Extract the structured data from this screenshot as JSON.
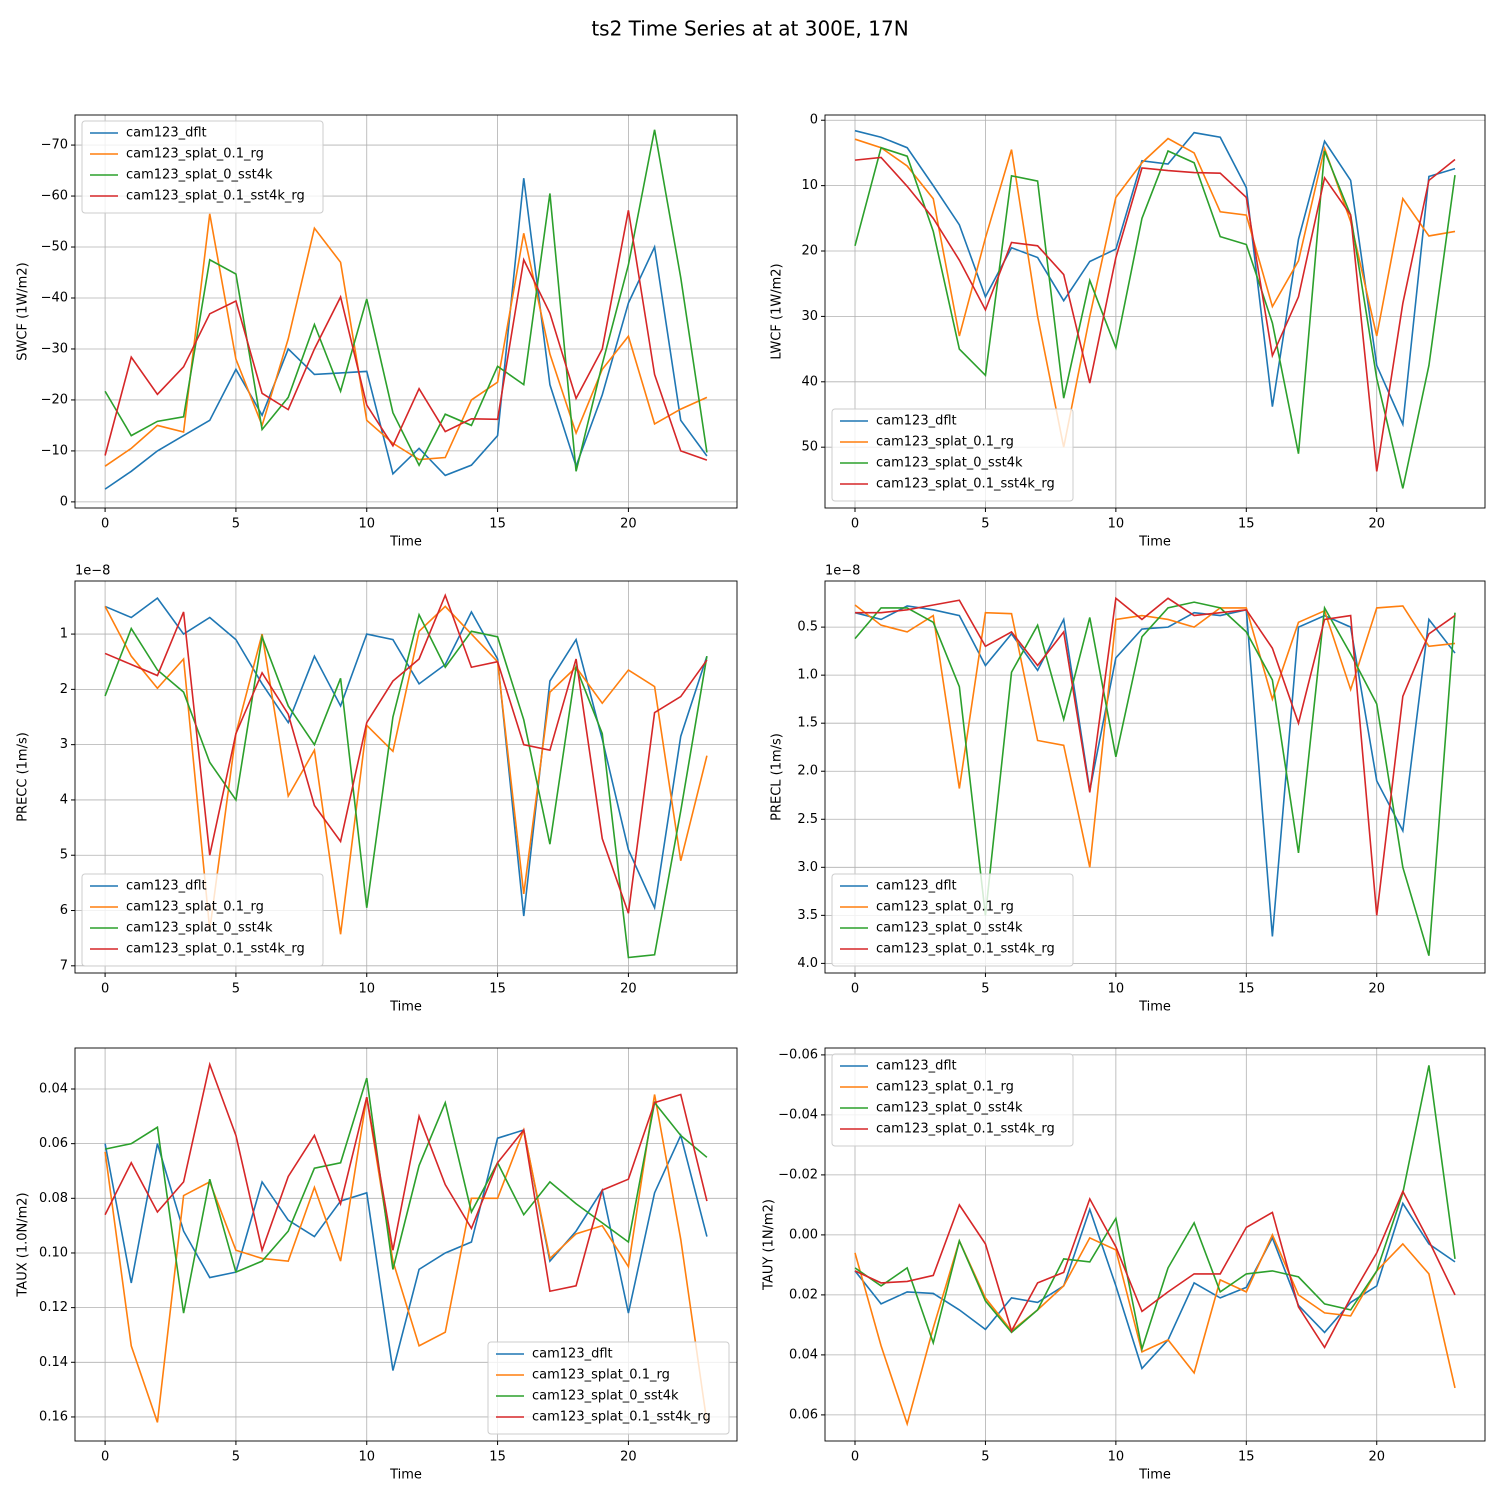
{
  "title": "ts2 Time Series at at 300E, 17N",
  "chart_data": [
    {
      "type": "line",
      "ylabel": "SWCF (1W/m2)",
      "xlabel": "Time",
      "legend": "upper left",
      "grid": true,
      "x": [
        0,
        1,
        2,
        3,
        4,
        5,
        6,
        7,
        8,
        9,
        10,
        11,
        12,
        13,
        14,
        15,
        16,
        17,
        18,
        19,
        20,
        21,
        22,
        23
      ],
      "xlim": [
        -1.15,
        24.15
      ],
      "xticks": [
        0,
        5,
        10,
        15,
        20
      ],
      "ylim": [
        1.2,
        -75.9
      ],
      "yticks": [
        0,
        {
          "value": -10,
          "label": "−10"
        },
        {
          "value": -20,
          "label": "−20"
        },
        {
          "value": -30,
          "label": "−30"
        },
        {
          "value": -40,
          "label": "−40"
        },
        {
          "value": -50,
          "label": "−50"
        },
        {
          "value": -60,
          "label": "−60"
        },
        {
          "value": -70,
          "label": "−70"
        }
      ],
      "series": [
        {
          "name": "cam123_dflt",
          "color": "#1f77b4",
          "values": [
            -2.5,
            -6,
            -10,
            -13,
            -16,
            -26,
            -17,
            -30,
            -25,
            -25.3,
            -25.6,
            -5.5,
            -10.5,
            -5.2,
            -7.2,
            -13,
            -63.5,
            -23,
            -7,
            -21,
            -39,
            -50,
            -16,
            -9
          ]
        },
        {
          "name": "cam123_splat_0.1_rg",
          "color": "#ff7f0e",
          "values": [
            -7,
            -10.5,
            -15,
            -13.7,
            -56.5,
            -28,
            -15,
            -32,
            -53.7,
            -47,
            -16,
            -11.5,
            -8.3,
            -8.7,
            -20,
            -23.5,
            -52.7,
            -29,
            -13.5,
            -26,
            -32.5,
            -15.3,
            -18.2,
            -20.5
          ]
        },
        {
          "name": "cam123_splat_0_sst4k",
          "color": "#2ca02c",
          "values": [
            -21.7,
            -13,
            -15.8,
            -16.7,
            -47.5,
            -44.7,
            -14.2,
            -20.5,
            -34.8,
            -21.7,
            -39.8,
            -17.5,
            -7.2,
            -17.2,
            -15,
            -26.6,
            -23,
            -60.5,
            -6,
            -27,
            -46.5,
            -73,
            -44,
            -9.7
          ]
        },
        {
          "name": "cam123_splat_0.1_sst4k_rg",
          "color": "#d62728",
          "values": [
            -9.1,
            -28.4,
            -21.1,
            -26.5,
            -36.9,
            -39.4,
            -21.3,
            -18.1,
            -30,
            -40.2,
            -19,
            -11,
            -22.2,
            -13.8,
            -16.3,
            -16.2,
            -47.5,
            -37,
            -20.3,
            -30,
            -57.2,
            -25,
            -10,
            -8.2
          ]
        }
      ]
    },
    {
      "type": "line",
      "ylabel": "LWCF (1W/m2)",
      "xlabel": "Time",
      "legend": "lower left",
      "grid": true,
      "x": [
        0,
        1,
        2,
        3,
        4,
        5,
        6,
        7,
        8,
        9,
        10,
        11,
        12,
        13,
        14,
        15,
        16,
        17,
        18,
        19,
        20,
        21,
        22,
        23
      ],
      "xlim": [
        -1.15,
        24.15
      ],
      "xticks": [
        0,
        5,
        10,
        15,
        20
      ],
      "ylim": [
        59.3,
        -0.8
      ],
      "yticks": [
        0,
        10,
        20,
        30,
        40,
        50
      ],
      "series": [
        {
          "name": "cam123_dflt",
          "color": "#1f77b4",
          "values": [
            1.6,
            2.6,
            4.2,
            10,
            16,
            27,
            19.5,
            21,
            27.6,
            21.6,
            19.7,
            6.2,
            6.7,
            1.9,
            2.6,
            10.3,
            43.8,
            18.2,
            3.2,
            9.2,
            37.5,
            46.5,
            8.6,
            7.4
          ]
        },
        {
          "name": "cam123_splat_0.1_rg",
          "color": "#ff7f0e",
          "values": [
            2.9,
            4.2,
            7,
            12,
            33,
            18,
            4.5,
            30,
            50,
            30,
            11.8,
            6.5,
            2.8,
            5,
            14,
            14.5,
            28.5,
            21.5,
            4.3,
            15.5,
            33,
            12,
            17.7,
            17
          ]
        },
        {
          "name": "cam123_splat_0_sst4k",
          "color": "#2ca02c",
          "values": [
            19.2,
            4.2,
            5.5,
            17,
            35,
            39,
            8.5,
            9.3,
            42.5,
            24.5,
            34.8,
            15,
            4.7,
            6.5,
            17.8,
            19,
            31,
            51,
            4.7,
            14.5,
            39.5,
            56.3,
            37.5,
            8.4
          ]
        },
        {
          "name": "cam123_splat_0.1_sst4k_rg",
          "color": "#d62728",
          "values": [
            6.1,
            5.7,
            10.1,
            15,
            21.4,
            29,
            18.7,
            19.2,
            23.6,
            40.2,
            21,
            7.3,
            7.7,
            8,
            8.1,
            11.8,
            36,
            27,
            8.8,
            14.5,
            53.7,
            28,
            9.2,
            6
          ]
        }
      ]
    },
    {
      "type": "line",
      "ylabel": "PRECC (1m/s)",
      "xlabel": "Time",
      "legend": "lower left",
      "grid": true,
      "offset_text": "1e−8",
      "x": [
        0,
        1,
        2,
        3,
        4,
        5,
        6,
        7,
        8,
        9,
        10,
        11,
        12,
        13,
        14,
        15,
        16,
        17,
        18,
        19,
        20,
        21,
        22,
        23
      ],
      "xlim": [
        -1.15,
        24.15
      ],
      "xticks": [
        0,
        5,
        10,
        15,
        20
      ],
      "ylim": [
        7.13,
        0.04
      ],
      "yticks": [
        1,
        2,
        3,
        4,
        5,
        6,
        7
      ],
      "series": [
        {
          "name": "cam123_dflt",
          "color": "#1f77b4",
          "values": [
            0.5,
            0.7,
            0.35,
            1,
            0.7,
            1.1,
            1.9,
            2.6,
            1.4,
            2.3,
            1.0,
            1.1,
            1.9,
            1.55,
            0.6,
            1.45,
            6.1,
            1.85,
            1.1,
            2.9,
            4.9,
            5.95,
            2.85,
            1.4
          ]
        },
        {
          "name": "cam123_splat_0.1_rg",
          "color": "#ff7f0e",
          "values": [
            0.5,
            1.4,
            1.98,
            1.45,
            6.35,
            2.8,
            1.0,
            3.93,
            3.1,
            6.43,
            2.65,
            3.12,
            0.95,
            0.5,
            1.0,
            1.5,
            5.7,
            2.05,
            1.6,
            2.25,
            1.65,
            1.95,
            5.1,
            3.2
          ]
        },
        {
          "name": "cam123_splat_0_sst4k",
          "color": "#2ca02c",
          "values": [
            2.12,
            0.9,
            1.65,
            2.05,
            3.32,
            4.0,
            1.05,
            2.3,
            3.0,
            1.8,
            5.95,
            2.5,
            0.65,
            1.6,
            0.95,
            1.05,
            2.55,
            4.8,
            1.6,
            2.8,
            6.85,
            6.8,
            4.2,
            1.4
          ]
        },
        {
          "name": "cam123_splat_0.1_sst4k_rg",
          "color": "#d62728",
          "values": [
            1.35,
            1.55,
            1.75,
            0.6,
            5.0,
            2.8,
            1.7,
            2.45,
            4.1,
            4.75,
            2.6,
            1.85,
            1.45,
            0.3,
            1.6,
            1.5,
            3.0,
            3.1,
            1.45,
            4.7,
            6.05,
            2.42,
            2.13,
            1.47
          ]
        }
      ]
    },
    {
      "type": "line",
      "ylabel": "PRECL (1m/s)",
      "xlabel": "Time",
      "legend": "lower left",
      "grid": true,
      "offset_text": "1e−8",
      "x": [
        0,
        1,
        2,
        3,
        4,
        5,
        6,
        7,
        8,
        9,
        10,
        11,
        12,
        13,
        14,
        15,
        16,
        17,
        18,
        19,
        20,
        21,
        22,
        23
      ],
      "xlim": [
        -1.15,
        24.15
      ],
      "xticks": [
        0,
        5,
        10,
        15,
        20
      ],
      "ylim": [
        4.1,
        0.02
      ],
      "yticks": [
        0.5,
        {
          "value": 1,
          "label": "1.0"
        },
        1.5,
        {
          "value": 2,
          "label": "2.0"
        },
        2.5,
        {
          "value": 3,
          "label": "3.0"
        },
        3.5,
        {
          "value": 4,
          "label": "4.0"
        }
      ],
      "series": [
        {
          "name": "cam123_dflt",
          "color": "#1f77b4",
          "values": [
            0.35,
            0.42,
            0.28,
            0.32,
            0.38,
            0.9,
            0.57,
            0.95,
            0.42,
            2.2,
            0.82,
            0.52,
            0.5,
            0.35,
            0.38,
            0.32,
            3.72,
            0.5,
            0.38,
            0.5,
            2.1,
            2.62,
            0.42,
            0.77
          ]
        },
        {
          "name": "cam123_splat_0.1_rg",
          "color": "#ff7f0e",
          "values": [
            0.27,
            0.48,
            0.55,
            0.38,
            2.18,
            0.35,
            0.36,
            1.68,
            1.73,
            3.0,
            0.42,
            0.38,
            0.42,
            0.5,
            0.3,
            0.3,
            1.25,
            0.45,
            0.33,
            1.15,
            0.3,
            0.28,
            0.7,
            0.67
          ]
        },
        {
          "name": "cam123_splat_0_sst4k",
          "color": "#2ca02c",
          "values": [
            0.62,
            0.3,
            0.3,
            0.45,
            1.12,
            3.5,
            0.97,
            0.48,
            1.46,
            0.4,
            1.85,
            0.6,
            0.3,
            0.24,
            0.3,
            0.55,
            1.05,
            2.85,
            0.3,
            0.78,
            1.3,
            3.0,
            3.92,
            0.35
          ]
        },
        {
          "name": "cam123_splat_0.1_sst4k_rg",
          "color": "#d62728",
          "values": [
            0.35,
            0.35,
            0.32,
            0.27,
            0.22,
            0.7,
            0.55,
            0.9,
            0.55,
            2.22,
            0.2,
            0.42,
            0.2,
            0.38,
            0.35,
            0.32,
            0.72,
            1.5,
            0.42,
            0.38,
            3.5,
            1.22,
            0.57,
            0.38
          ]
        }
      ]
    },
    {
      "type": "line",
      "ylabel": "TAUX (1.0N/m2)",
      "xlabel": "Time",
      "legend": "lower right",
      "grid": true,
      "x": [
        0,
        1,
        2,
        3,
        4,
        5,
        6,
        7,
        8,
        9,
        10,
        11,
        12,
        13,
        14,
        15,
        16,
        17,
        18,
        19,
        20,
        21,
        22,
        23
      ],
      "xlim": [
        -1.15,
        24.15
      ],
      "xticks": [
        0,
        5,
        10,
        15,
        20
      ],
      "ylim": [
        0.1688,
        0.025
      ],
      "yticks": [
        0.04,
        0.06,
        0.08,
        {
          "value": 0.1,
          "label": "0.10"
        },
        0.12,
        0.14,
        0.16
      ],
      "series": [
        {
          "name": "cam123_dflt",
          "color": "#1f77b4",
          "values": [
            0.06,
            0.111,
            0.06,
            0.092,
            0.109,
            0.107,
            0.074,
            0.088,
            0.094,
            0.081,
            0.078,
            0.143,
            0.106,
            0.1,
            0.096,
            0.058,
            0.055,
            0.103,
            0.092,
            0.077,
            0.122,
            0.078,
            0.057,
            0.094
          ]
        },
        {
          "name": "cam123_splat_0.1_rg",
          "color": "#ff7f0e",
          "values": [
            0.063,
            0.134,
            0.162,
            0.079,
            0.074,
            0.099,
            0.102,
            0.103,
            0.076,
            0.103,
            0.043,
            0.103,
            0.134,
            0.129,
            0.08,
            0.08,
            0.055,
            0.102,
            0.093,
            0.09,
            0.105,
            0.042,
            0.095,
            0.162
          ]
        },
        {
          "name": "cam123_splat_0_sst4k",
          "color": "#2ca02c",
          "values": [
            0.062,
            0.06,
            0.054,
            0.122,
            0.073,
            0.107,
            0.103,
            0.092,
            0.069,
            0.067,
            0.036,
            0.106,
            0.068,
            0.045,
            0.085,
            0.067,
            0.086,
            0.074,
            0.082,
            0.089,
            0.096,
            0.045,
            0.057,
            0.065
          ]
        },
        {
          "name": "cam123_splat_0.1_sst4k_rg",
          "color": "#d62728",
          "values": [
            0.086,
            0.067,
            0.085,
            0.074,
            0.031,
            0.057,
            0.099,
            0.072,
            0.057,
            0.082,
            0.043,
            0.099,
            0.05,
            0.075,
            0.091,
            0.067,
            0.055,
            0.114,
            0.112,
            0.077,
            0.073,
            0.045,
            0.042,
            0.081
          ]
        }
      ]
    },
    {
      "type": "line",
      "ylabel": "TAUY (1N/m2)",
      "xlabel": "Time",
      "legend": "upper left",
      "grid": true,
      "x": [
        0,
        1,
        2,
        3,
        4,
        5,
        6,
        7,
        8,
        9,
        10,
        11,
        12,
        13,
        14,
        15,
        16,
        17,
        18,
        19,
        20,
        21,
        22,
        23
      ],
      "xlim": [
        -1.15,
        24.15
      ],
      "xticks": [
        0,
        5,
        10,
        15,
        20
      ],
      "ylim": [
        0.0687,
        -0.0623
      ],
      "yticks": [
        {
          "value": -0.06,
          "label": "−0.06"
        },
        {
          "value": -0.04,
          "label": "−0.04"
        },
        {
          "value": -0.02,
          "label": "−0.02"
        },
        {
          "value": 0,
          "label": "0.00"
        },
        0.02,
        0.04,
        0.06
      ],
      "series": [
        {
          "name": "cam123_dflt",
          "color": "#1f77b4",
          "values": [
            0.012,
            0.023,
            0.019,
            0.0195,
            0.025,
            0.0315,
            0.021,
            0.0225,
            0.017,
            -0.0085,
            0.017,
            0.0445,
            0.035,
            0.016,
            0.021,
            0.0175,
            0.001,
            0.0235,
            0.0325,
            0.0225,
            0.017,
            -0.0105,
            0.003,
            0.009
          ]
        },
        {
          "name": "cam123_splat_0.1_rg",
          "color": "#ff7f0e",
          "values": [
            0.006,
            0.037,
            0.063,
            0.031,
            0.002,
            0.021,
            0.032,
            0.025,
            0.017,
            0.001,
            0.005,
            0.039,
            0.035,
            0.046,
            0.015,
            0.019,
            0.0,
            0.02,
            0.026,
            0.027,
            0.012,
            0.003,
            0.013,
            0.051
          ]
        },
        {
          "name": "cam123_splat_0_sst4k",
          "color": "#2ca02c",
          "values": [
            0.011,
            0.017,
            0.011,
            0.036,
            0.002,
            0.022,
            0.0325,
            0.025,
            0.008,
            0.009,
            -0.0055,
            0.038,
            0.011,
            -0.004,
            0.019,
            0.013,
            0.012,
            0.014,
            0.023,
            0.025,
            0.012,
            -0.014,
            -0.0565,
            0.008
          ]
        },
        {
          "name": "cam123_splat_0.1_sst4k_rg",
          "color": "#d62728",
          "values": [
            0.012,
            0.016,
            0.0155,
            0.0135,
            -0.01,
            0.003,
            0.032,
            0.016,
            0.0125,
            -0.012,
            0.004,
            0.0255,
            0.019,
            0.013,
            0.013,
            -0.0025,
            -0.0075,
            0.024,
            0.0375,
            0.021,
            0.006,
            -0.0145,
            0.002,
            0.02
          ]
        }
      ]
    }
  ]
}
